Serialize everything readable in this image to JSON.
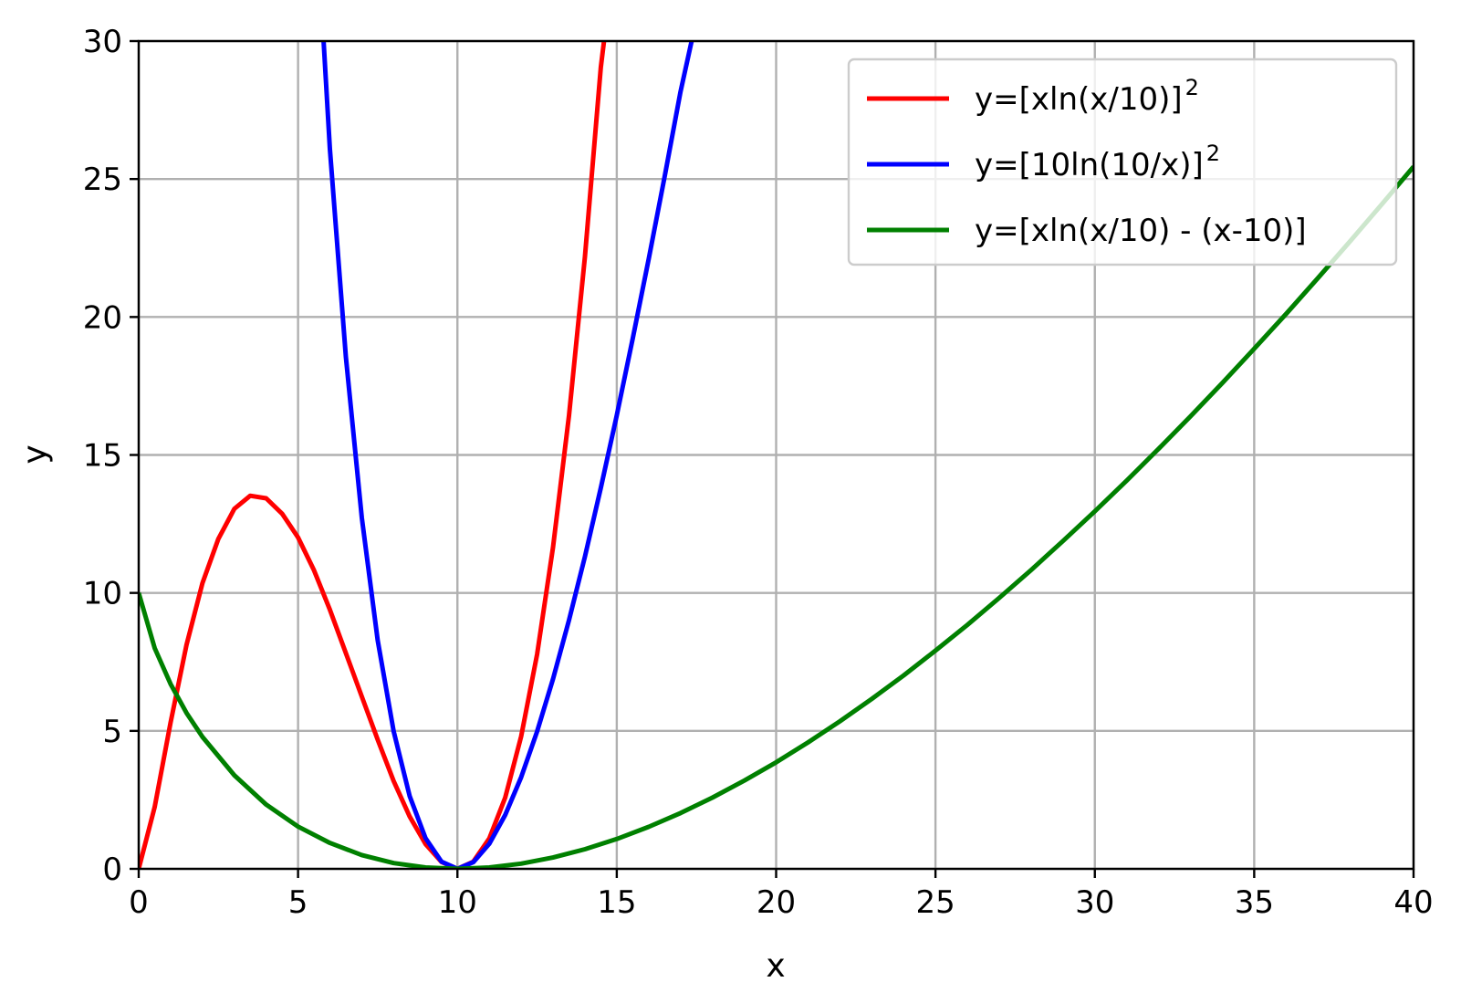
{
  "chart_data": {
    "type": "line",
    "title": "",
    "xlabel": "x",
    "ylabel": "y",
    "xlim": [
      0,
      40
    ],
    "ylim": [
      0,
      30
    ],
    "xticks": [
      0,
      5,
      10,
      15,
      20,
      25,
      30,
      35,
      40
    ],
    "yticks": [
      0,
      5,
      10,
      15,
      20,
      25,
      30
    ],
    "grid": true,
    "legend_position": "top-right",
    "series": [
      {
        "name": "y=[xln(x/10)]",
        "name_superscript": "2",
        "color": "#ff0000",
        "x": [
          0,
          0.5,
          1,
          1.5,
          2,
          2.5,
          3,
          3.5,
          4,
          4.5,
          5,
          5.5,
          6,
          6.5,
          7,
          7.5,
          8,
          8.5,
          9,
          9.5,
          10,
          10.5,
          11,
          11.5,
          12,
          12.5,
          13,
          13.5,
          14,
          14.5,
          14.6
        ],
        "y": [
          0,
          2.24,
          5.3,
          8.12,
          10.36,
          11.96,
          13.05,
          13.52,
          13.43,
          12.87,
          12.01,
          10.82,
          9.39,
          7.82,
          6.24,
          4.68,
          3.18,
          1.9,
          0.9,
          0.25,
          0,
          0.26,
          1.1,
          2.58,
          4.8,
          7.78,
          11.65,
          16.42,
          22.19,
          29.05,
          30.0
        ]
      },
      {
        "name": "y=[10ln(10/x)]",
        "name_superscript": "2",
        "color": "#0000ff",
        "x": [
          5.8,
          6,
          6.5,
          7,
          7.5,
          8,
          8.5,
          9,
          9.5,
          10,
          10.5,
          11,
          11.5,
          12,
          12.5,
          13,
          13.5,
          14,
          14.5,
          15,
          15.5,
          16,
          16.5,
          17,
          17.35
        ],
        "y": [
          30.0,
          26.09,
          18.56,
          12.72,
          8.28,
          4.98,
          2.64,
          1.11,
          0.26,
          0,
          0.24,
          0.91,
          1.95,
          3.32,
          4.98,
          6.88,
          9.01,
          11.32,
          13.81,
          16.44,
          19.21,
          22.09,
          25.08,
          28.16,
          30.0
        ]
      },
      {
        "name": "y=[xln(x/10) - (x-10)]",
        "color": "#008000",
        "x": [
          0,
          0.5,
          1,
          1.5,
          2,
          3,
          4,
          5,
          6,
          7,
          8,
          9,
          10,
          11,
          12,
          13,
          14,
          15,
          16,
          17,
          18,
          19,
          20,
          21,
          22,
          23,
          24,
          25,
          26,
          27,
          28,
          29,
          30,
          31,
          32,
          33,
          34,
          35,
          36,
          37,
          38,
          39,
          40
        ],
        "y": [
          10,
          8.0,
          6.7,
          5.65,
          4.78,
          3.39,
          2.33,
          1.53,
          0.94,
          0.5,
          0.21,
          0.05,
          0,
          0.05,
          0.19,
          0.41,
          0.71,
          1.08,
          1.52,
          2.02,
          2.58,
          3.2,
          3.86,
          4.58,
          5.35,
          6.16,
          7.01,
          7.91,
          8.84,
          9.82,
          10.83,
          11.88,
          12.96,
          14.07,
          15.22,
          16.4,
          17.61,
          18.85,
          20.11,
          21.41,
          22.73,
          24.08,
          25.45
        ]
      }
    ]
  }
}
